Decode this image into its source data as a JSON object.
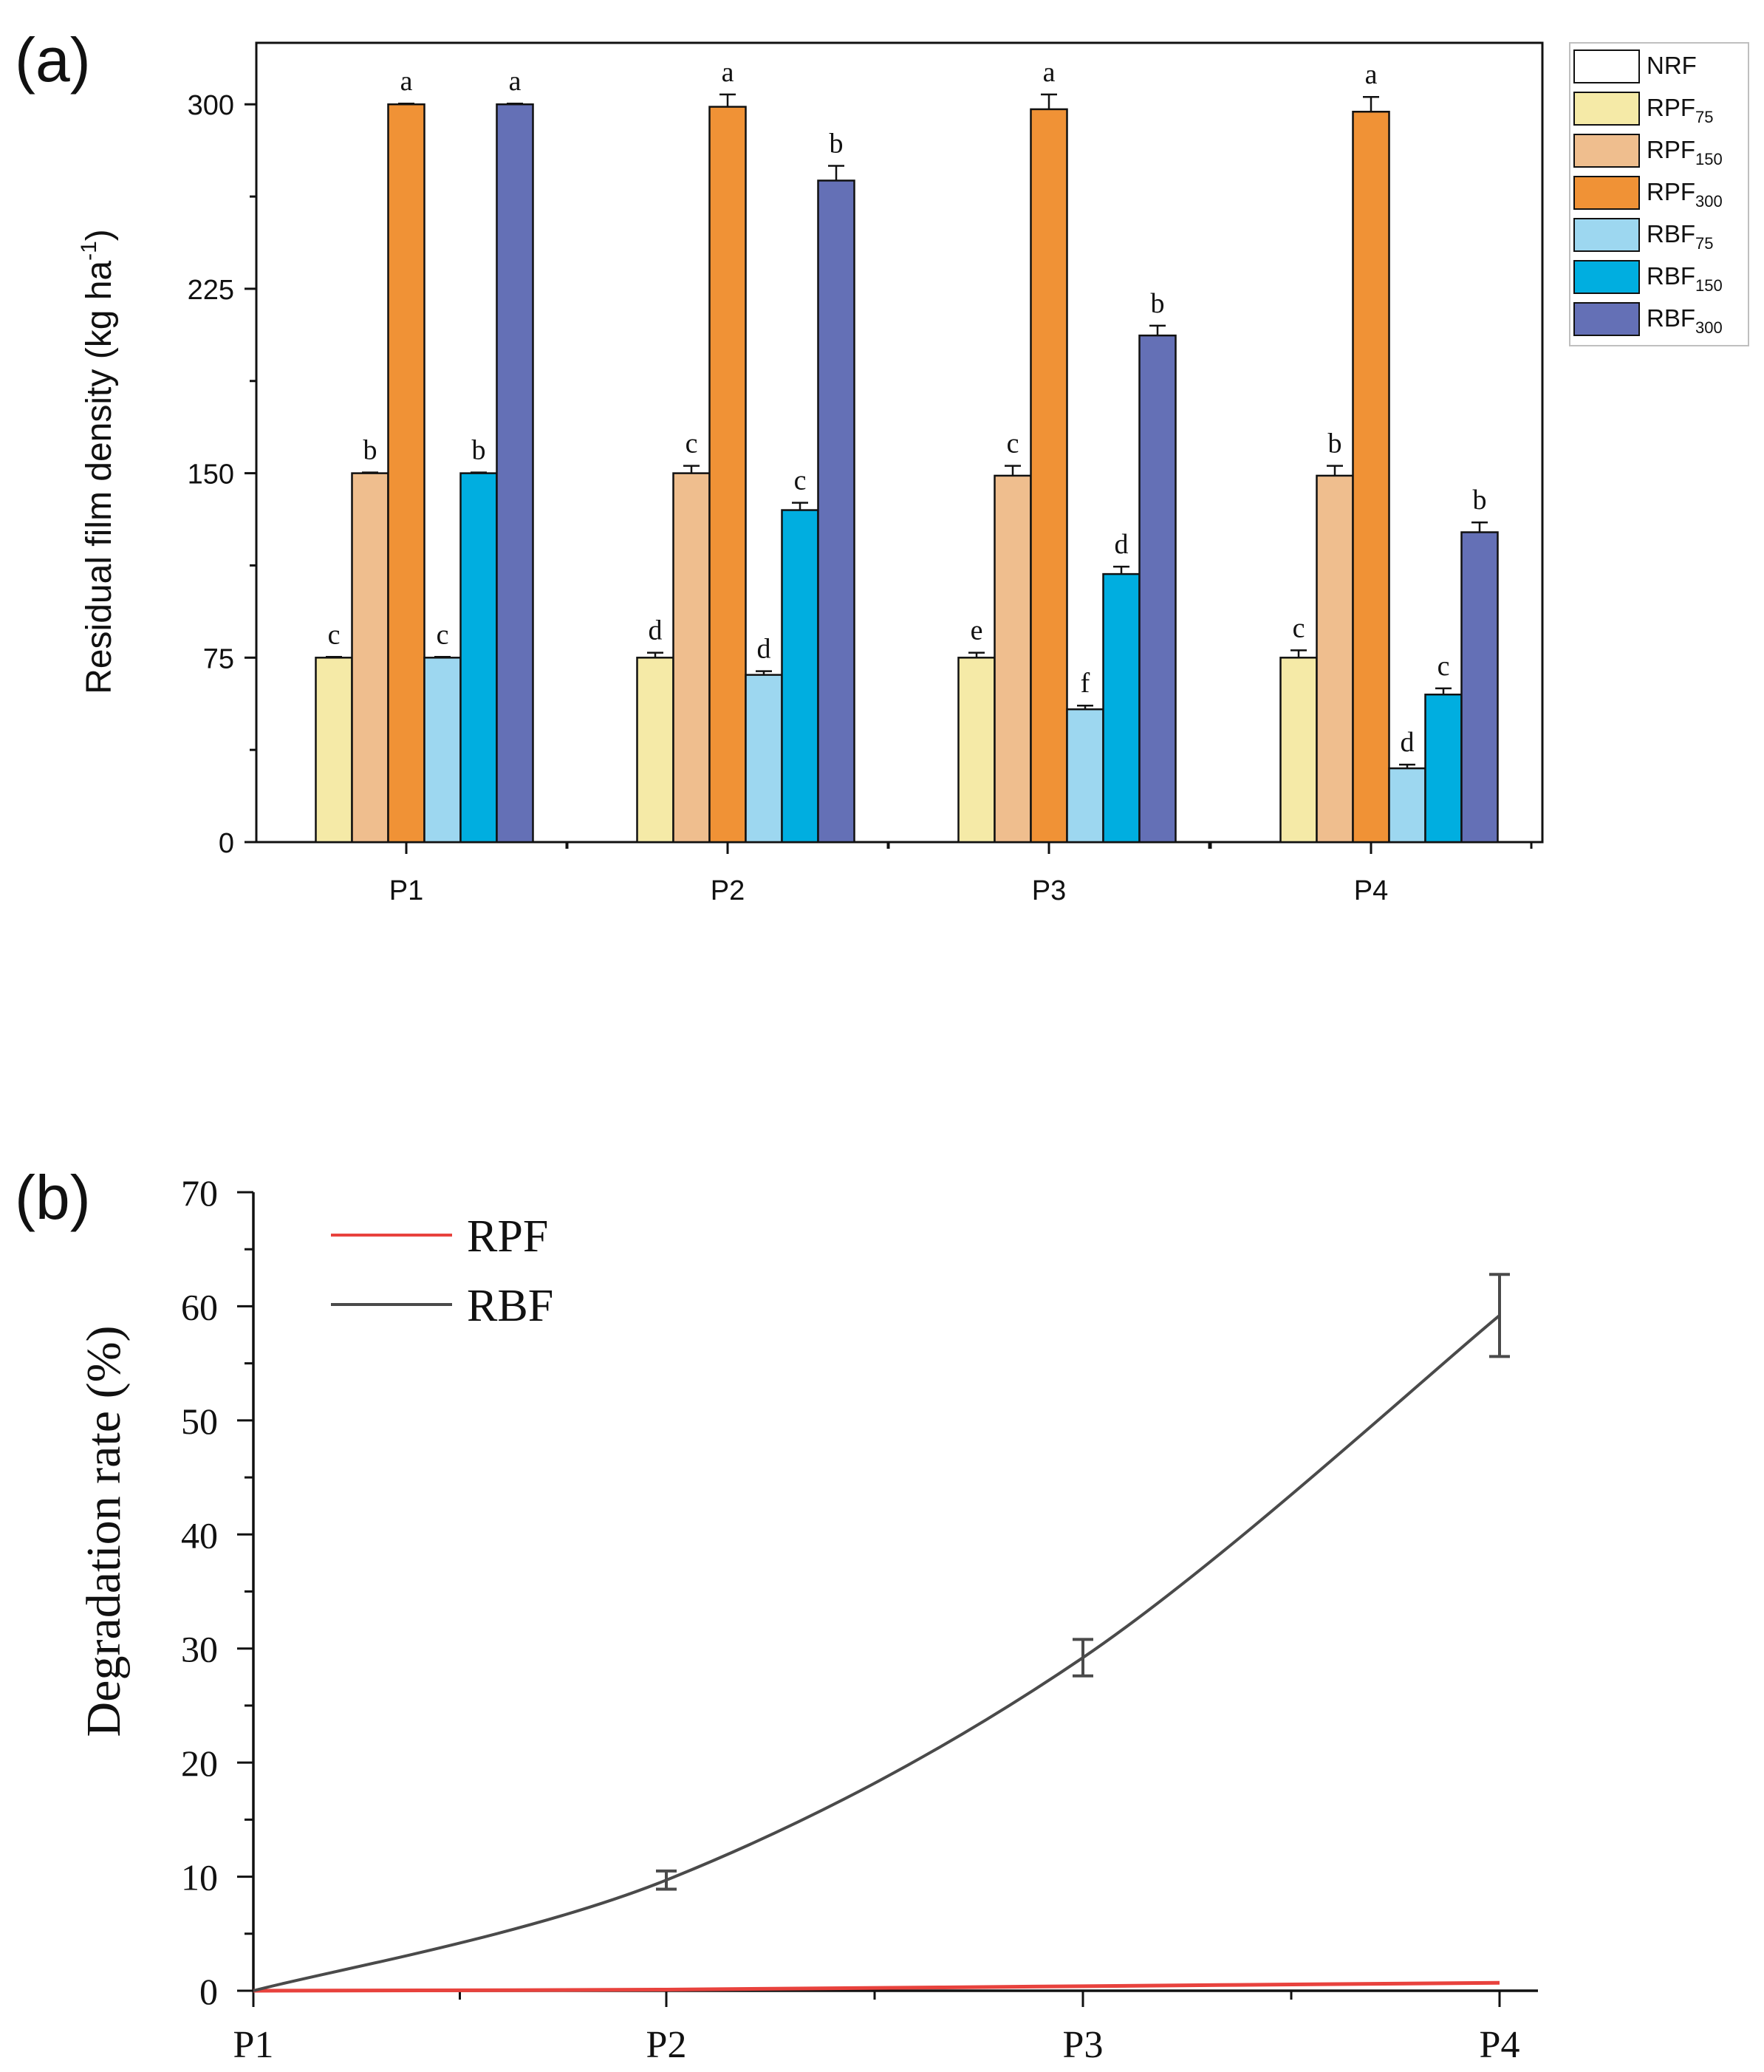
{
  "figure_label_a": "(a)",
  "figure_label_b": "(b)",
  "chart_data": [
    {
      "type": "bar",
      "panel": "a",
      "title": "",
      "xlabel": "",
      "ylabel_main": "Residual film density (kg ha",
      "ylabel_sup": "-1",
      "ylabel_close": ")",
      "ylim": [
        0,
        325
      ],
      "yticks": [
        0,
        75,
        150,
        225,
        300
      ],
      "ytick_labels": [
        "0",
        "75",
        "150",
        "225",
        "300"
      ],
      "categories": [
        "P1",
        "P2",
        "P3",
        "P4"
      ],
      "legend_position": "right",
      "series": [
        {
          "name": "NRF",
          "base": "NRF",
          "sub": "",
          "color": "#ffffff",
          "values": [
            0,
            0,
            0,
            0
          ],
          "errors": [
            0,
            0,
            0,
            0
          ],
          "letters": [
            "",
            "",
            "",
            ""
          ]
        },
        {
          "name": "RPF75",
          "base": "RPF",
          "sub": "75",
          "color": "#f5eaa7",
          "values": [
            75,
            75,
            75,
            75
          ],
          "errors": [
            0.3,
            2,
            2,
            3
          ],
          "letters": [
            "c",
            "d",
            "e",
            "c"
          ]
        },
        {
          "name": "RPF150",
          "base": "RPF",
          "sub": "150",
          "color": "#efbe8e",
          "values": [
            150,
            150,
            149,
            149
          ],
          "errors": [
            0.3,
            3,
            4,
            4
          ],
          "letters": [
            "b",
            "c",
            "c",
            "b"
          ]
        },
        {
          "name": "RPF300",
          "base": "RPF",
          "sub": "300",
          "color": "#f09236",
          "values": [
            300,
            299,
            298,
            297
          ],
          "errors": [
            0.3,
            5,
            6,
            6
          ],
          "letters": [
            "a",
            "a",
            "a",
            "a"
          ]
        },
        {
          "name": "RBF75",
          "base": "RBF",
          "sub": "75",
          "color": "#9dd7f0",
          "values": [
            75,
            68,
            54,
            30
          ],
          "errors": [
            0.3,
            1.5,
            1.5,
            1.5
          ],
          "letters": [
            "c",
            "d",
            "f",
            "d"
          ]
        },
        {
          "name": "RBF150",
          "base": "RBF",
          "sub": "150",
          "color": "#00aee0",
          "values": [
            150,
            135,
            109,
            60
          ],
          "errors": [
            0.3,
            3,
            3,
            2.5
          ],
          "letters": [
            "b",
            "c",
            "d",
            "c"
          ]
        },
        {
          "name": "RBF300",
          "base": "RBF",
          "sub": "300",
          "color": "#6470b6",
          "values": [
            300,
            269,
            206,
            126
          ],
          "errors": [
            0.3,
            6,
            4,
            4
          ],
          "letters": [
            "a",
            "b",
            "b",
            "b"
          ]
        }
      ]
    },
    {
      "type": "line",
      "panel": "b",
      "title": "",
      "xlabel": "",
      "ylabel": "Degradation rate (%)",
      "ylim": [
        0,
        70
      ],
      "yticks": [
        0,
        10,
        20,
        30,
        40,
        50,
        60,
        70
      ],
      "ytick_labels": [
        "0",
        "10",
        "20",
        "30",
        "40",
        "50",
        "60",
        "70"
      ],
      "categories": [
        "P1",
        "P2",
        "P3",
        "P4"
      ],
      "legend_position": "top-left",
      "series": [
        {
          "name": "RPF",
          "color": "#e8423d",
          "values": [
            0,
            0.1,
            0.4,
            0.7
          ],
          "errors": [
            0,
            0,
            0,
            0
          ]
        },
        {
          "name": "RBF",
          "color": "#4a4a4a",
          "values": [
            0,
            9.7,
            29.2,
            59.2
          ],
          "errors": [
            0,
            0.8,
            1.6,
            3.6
          ]
        }
      ]
    }
  ]
}
